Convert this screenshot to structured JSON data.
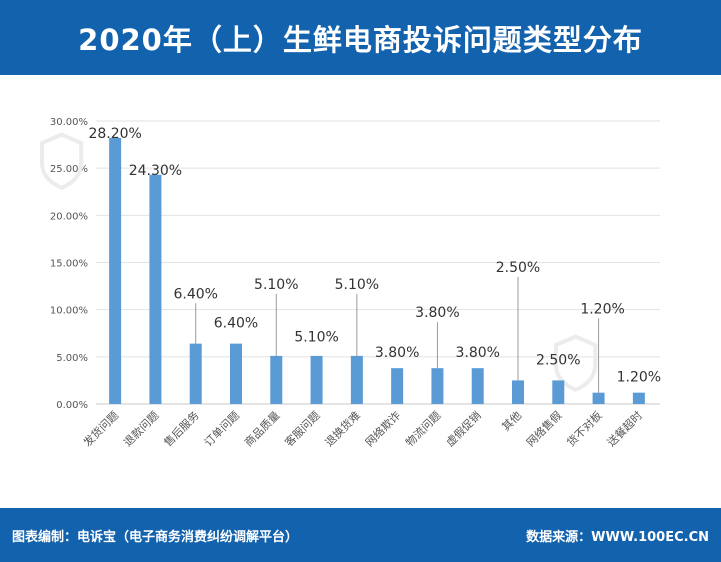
{
  "header": {
    "title": "2020年（上）生鲜电商投诉问题类型分布"
  },
  "footer": {
    "left": "图表编制：电诉宝（电子商务消费纠纷调解平台）",
    "right": "数据来源：WWW.100EC.CN"
  },
  "colors": {
    "brand": "#1262ae",
    "bar": "#5b9bd5"
  },
  "chart_data": {
    "type": "bar",
    "categories": [
      "发货问题",
      "退款问题",
      "售后服务",
      "订单问题",
      "商品质量",
      "客服问题",
      "退换货难",
      "网络欺诈",
      "物流问题",
      "虚假促销",
      "其他",
      "网络售假",
      "货不对板",
      "送餐超时"
    ],
    "values": [
      28.2,
      24.3,
      6.4,
      6.4,
      5.1,
      5.1,
      5.1,
      3.8,
      3.8,
      3.8,
      2.5,
      2.5,
      1.2,
      1.2
    ],
    "data_labels": [
      "28.20%",
      "24.30%",
      "6.40%",
      "6.40%",
      "5.10%",
      "5.10%",
      "5.10%",
      "3.80%",
      "3.80%",
      "3.80%",
      "2.50%",
      "2.50%",
      "1.20%",
      "1.20%"
    ],
    "yticks": [
      "0.00%",
      "5.00%",
      "10.00%",
      "15.00%",
      "20.00%",
      "25.00%",
      "30.00%"
    ],
    "ylim": [
      0,
      30
    ],
    "grid": true,
    "legend": "none",
    "title": "",
    "xlabel": "",
    "ylabel": ""
  }
}
